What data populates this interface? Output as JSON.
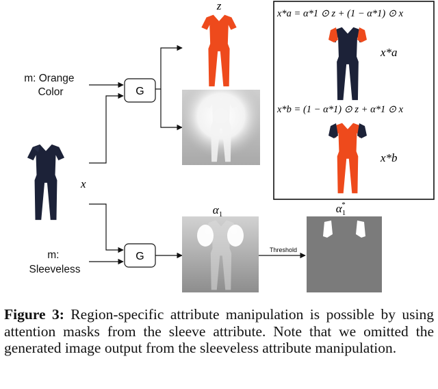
{
  "inputs": {
    "orange_condition": [
      "m: Orange",
      "Color"
    ],
    "sleeveless_condition": [
      "m:",
      "Sleeveless"
    ],
    "input_image": "x"
  },
  "generator_label": "G",
  "outputs": {
    "generated_image": "z",
    "attention_mask": "α",
    "attention_mask_sub": "1",
    "thresholded_mask": "α",
    "thresholded_mask_sub": "1",
    "thresholded_mask_sup": "*",
    "threshold_label": "Threshold"
  },
  "equations": {
    "eq_a": "x*a = α*1 ⊙ z + (1 − α*1) ⊙ x",
    "result_a": "x*a",
    "eq_b": "x*b = (1 − α*1) ⊙ z + α*1 ⊙ x",
    "result_b": "x*b"
  },
  "caption": {
    "label": "Figure 3:",
    "text": "Region-specific attribute manipulation is possible by using attention masks from the sleeve attribute. Note that we omitted the generated image output from the sleeveless attribute manipulation."
  },
  "colors": {
    "orange": "#ee4a1c",
    "navy": "#1c2238",
    "mask_gray": "#7b7b7b"
  }
}
